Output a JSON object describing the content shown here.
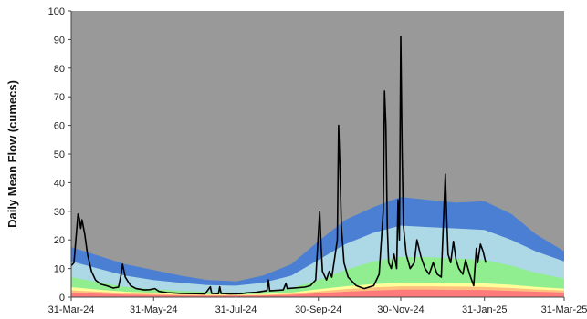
{
  "chart_data": {
    "type": "area",
    "title": "",
    "xlabel": "",
    "ylabel": "Daily Mean Flow (cumecs)",
    "ylim": [
      0,
      100
    ],
    "xlim": [
      "2024-03-31",
      "2025-03-31"
    ],
    "yticks": [
      0,
      10,
      20,
      30,
      40,
      50,
      60,
      70,
      80,
      90,
      100
    ],
    "xticks": [
      "31-Mar-24",
      "31-May-24",
      "31-Jul-24",
      "30-Sep-24",
      "30-Nov-24",
      "31-Jan-25",
      "31-Mar-25"
    ],
    "xtick_dates": [
      "2024-03-31",
      "2024-05-31",
      "2024-07-31",
      "2024-09-30",
      "2024-11-30",
      "2025-01-31",
      "2025-03-31"
    ],
    "grid": false,
    "background_color": "#999999",
    "band_dates": [
      "2024-03-31",
      "2024-04-20",
      "2024-05-10",
      "2024-05-31",
      "2024-06-20",
      "2024-07-10",
      "2024-07-31",
      "2024-08-20",
      "2024-09-10",
      "2024-09-30",
      "2024-10-20",
      "2024-11-10",
      "2024-11-30",
      "2024-12-20",
      "2025-01-10",
      "2025-01-31",
      "2025-02-20",
      "2025-03-10",
      "2025-03-31"
    ],
    "bands": [
      {
        "color": "#4a7fd4",
        "upper": [
          17.5,
          14.5,
          11.5,
          9.5,
          7.5,
          6.0,
          5.5,
          7.5,
          11.5,
          19.5,
          27.0,
          31.5,
          35.0,
          34.0,
          33.0,
          33.5,
          29.0,
          22.0,
          16.0
        ]
      },
      {
        "color": "#add8e6",
        "upper": [
          12.5,
          10.0,
          7.5,
          6.0,
          5.0,
          4.2,
          4.0,
          5.0,
          7.5,
          13.0,
          18.5,
          22.5,
          25.0,
          24.5,
          24.0,
          23.5,
          20.0,
          16.0,
          12.5
        ]
      },
      {
        "color": "#90ee90",
        "upper": [
          7.0,
          5.2,
          3.6,
          2.8,
          2.2,
          1.8,
          1.6,
          2.0,
          3.2,
          6.0,
          9.5,
          12.5,
          14.0,
          14.0,
          13.5,
          13.0,
          11.0,
          8.5,
          6.5
        ]
      },
      {
        "color": "#ffff99",
        "upper": [
          3.5,
          2.6,
          1.9,
          1.5,
          1.2,
          1.0,
          0.9,
          1.1,
          1.6,
          2.8,
          3.8,
          4.6,
          5.0,
          5.0,
          4.9,
          4.8,
          4.3,
          3.6,
          3.0
        ]
      },
      {
        "color": "#ffc080",
        "upper": [
          2.4,
          1.9,
          1.4,
          1.1,
          0.9,
          0.8,
          0.7,
          0.8,
          1.2,
          2.0,
          2.8,
          3.4,
          3.8,
          3.8,
          3.7,
          3.6,
          3.2,
          2.7,
          2.3
        ]
      },
      {
        "color": "#ff7a7a",
        "upper": [
          1.5,
          1.2,
          0.9,
          0.7,
          0.6,
          0.5,
          0.5,
          0.6,
          0.8,
          1.3,
          1.9,
          2.3,
          2.6,
          2.6,
          2.5,
          2.5,
          2.2,
          1.9,
          1.6
        ]
      }
    ],
    "series": [
      {
        "type": "line",
        "color": "#000000",
        "points": [
          [
            "2024-03-31",
            11
          ],
          [
            "2024-04-02",
            12
          ],
          [
            "2024-04-05",
            29
          ],
          [
            "2024-04-06",
            27.5
          ],
          [
            "2024-04-07",
            24
          ],
          [
            "2024-04-08",
            27
          ],
          [
            "2024-04-10",
            22
          ],
          [
            "2024-04-12",
            15
          ],
          [
            "2024-04-15",
            9
          ],
          [
            "2024-04-18",
            6
          ],
          [
            "2024-04-22",
            4.5
          ],
          [
            "2024-04-26",
            4
          ],
          [
            "2024-05-01",
            3.2
          ],
          [
            "2024-05-05",
            3.5
          ],
          [
            "2024-05-07",
            8
          ],
          [
            "2024-05-08",
            11.5
          ],
          [
            "2024-05-10",
            7
          ],
          [
            "2024-05-12",
            5.5
          ],
          [
            "2024-05-14",
            4
          ],
          [
            "2024-05-18",
            3
          ],
          [
            "2024-05-24",
            2.5
          ],
          [
            "2024-05-28",
            2.6
          ],
          [
            "2024-06-01",
            3
          ],
          [
            "2024-06-04",
            2
          ],
          [
            "2024-06-10",
            1.6
          ],
          [
            "2024-06-20",
            1.3
          ],
          [
            "2024-07-01",
            1.2
          ],
          [
            "2024-07-08",
            1.1
          ],
          [
            "2024-07-12",
            3.6
          ],
          [
            "2024-07-13",
            1.3
          ],
          [
            "2024-07-18",
            1.2
          ],
          [
            "2024-07-19",
            3.6
          ],
          [
            "2024-07-20",
            1.3
          ],
          [
            "2024-07-26",
            1.1
          ],
          [
            "2024-08-04",
            1.2
          ],
          [
            "2024-08-08",
            1.5
          ],
          [
            "2024-08-15",
            1.7
          ],
          [
            "2024-08-23",
            2.3
          ],
          [
            "2024-08-24",
            6
          ],
          [
            "2024-08-25",
            2.2
          ],
          [
            "2024-09-04",
            2.5
          ],
          [
            "2024-09-06",
            4.8
          ],
          [
            "2024-09-07",
            3
          ],
          [
            "2024-09-20",
            3.5
          ],
          [
            "2024-09-24",
            4
          ],
          [
            "2024-09-28",
            6
          ],
          [
            "2024-10-01",
            30
          ],
          [
            "2024-10-02",
            18
          ],
          [
            "2024-10-03",
            9
          ],
          [
            "2024-10-06",
            6
          ],
          [
            "2024-10-08",
            9
          ],
          [
            "2024-10-10",
            7
          ],
          [
            "2024-10-14",
            20
          ],
          [
            "2024-10-15",
            60
          ],
          [
            "2024-10-16",
            45
          ],
          [
            "2024-10-17",
            25
          ],
          [
            "2024-10-19",
            12
          ],
          [
            "2024-10-22",
            7
          ],
          [
            "2024-10-28",
            4
          ],
          [
            "2024-11-03",
            3
          ],
          [
            "2024-11-10",
            4
          ],
          [
            "2024-11-14",
            8
          ],
          [
            "2024-11-17",
            30
          ],
          [
            "2024-11-18",
            72
          ],
          [
            "2024-11-19",
            60
          ],
          [
            "2024-11-20",
            25
          ],
          [
            "2024-11-21",
            12
          ],
          [
            "2024-11-23",
            10
          ],
          [
            "2024-11-25",
            15
          ],
          [
            "2024-11-27",
            10
          ],
          [
            "2024-11-28",
            34
          ],
          [
            "2024-11-29",
            20
          ],
          [
            "2024-11-30",
            91
          ],
          [
            "2024-12-01",
            50
          ],
          [
            "2024-12-02",
            25
          ],
          [
            "2024-12-04",
            15
          ],
          [
            "2024-12-07",
            10
          ],
          [
            "2024-12-10",
            12
          ],
          [
            "2024-12-12",
            20
          ],
          [
            "2024-12-15",
            14
          ],
          [
            "2024-12-18",
            10
          ],
          [
            "2024-12-21",
            8
          ],
          [
            "2024-12-24",
            12
          ],
          [
            "2024-12-27",
            8
          ],
          [
            "2024-12-30",
            7
          ],
          [
            "2025-01-02",
            43
          ],
          [
            "2025-01-03",
            28
          ],
          [
            "2025-01-04",
            15
          ],
          [
            "2025-01-06",
            12
          ],
          [
            "2025-01-08",
            19.5
          ],
          [
            "2025-01-10",
            13
          ],
          [
            "2025-01-12",
            10
          ],
          [
            "2025-01-15",
            8
          ],
          [
            "2025-01-17",
            13
          ],
          [
            "2025-01-20",
            8
          ],
          [
            "2025-01-23",
            4
          ],
          [
            "2025-01-25",
            17
          ],
          [
            "2025-01-26",
            12
          ],
          [
            "2025-01-28",
            18.5
          ],
          [
            "2025-01-30",
            16
          ],
          [
            "2025-02-01",
            12
          ]
        ]
      }
    ]
  }
}
